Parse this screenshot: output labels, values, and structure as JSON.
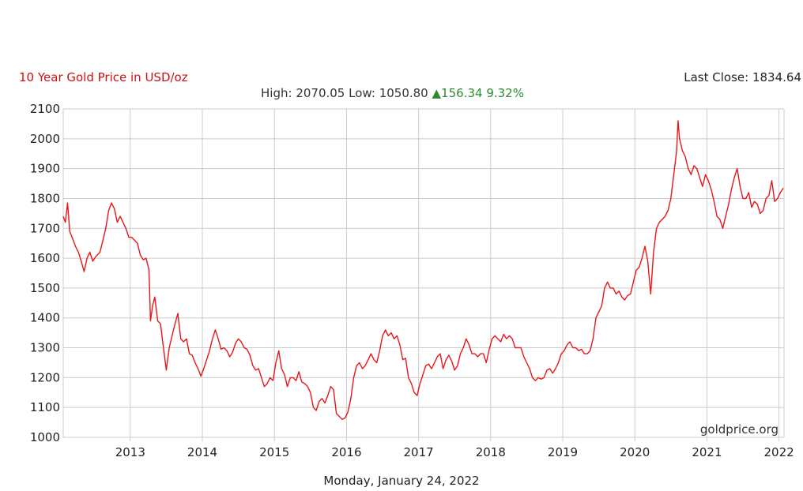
{
  "header": {
    "title": "10 Year Gold Price in USD/oz",
    "high_label": "High:",
    "high_value": "2070.05",
    "low_label": "Low:",
    "low_value": "1050.80",
    "change_arrow": "▲",
    "change_value": "156.34",
    "change_pct": "9.32%",
    "last_close_label": "Last Close:",
    "last_close_value": "1834.64"
  },
  "footer": {
    "source": "goldprice.org",
    "date": "Monday, January 24, 2022"
  },
  "colors": {
    "line": "#e8161b",
    "title": "#cc1111",
    "change": "#2e8b2e",
    "grid": "#cccccc"
  },
  "chart_data": {
    "type": "line",
    "title": "10 Year Gold Price in USD/oz",
    "xlabel": "",
    "ylabel": "",
    "ylim": [
      1000,
      2100
    ],
    "xlim": [
      2012.07,
      2022.07
    ],
    "yticks": [
      "1000",
      "1100",
      "1200",
      "1300",
      "1400",
      "1500",
      "1600",
      "1700",
      "1800",
      "1900",
      "2000",
      "2100"
    ],
    "xticks": [
      "2013",
      "2014",
      "2015",
      "2016",
      "2017",
      "2018",
      "2019",
      "2020",
      "2021",
      "2022"
    ],
    "grid": true,
    "series": [
      {
        "values": [
          [
            2012.07,
            1740
          ],
          [
            2012.1,
            1720
          ],
          [
            2012.13,
            1785
          ],
          [
            2012.16,
            1690
          ],
          [
            2012.2,
            1665
          ],
          [
            2012.24,
            1640
          ],
          [
            2012.28,
            1620
          ],
          [
            2012.32,
            1590
          ],
          [
            2012.36,
            1555
          ],
          [
            2012.4,
            1600
          ],
          [
            2012.44,
            1620
          ],
          [
            2012.48,
            1590
          ],
          [
            2012.52,
            1605
          ],
          [
            2012.58,
            1620
          ],
          [
            2012.62,
            1660
          ],
          [
            2012.66,
            1700
          ],
          [
            2012.7,
            1760
          ],
          [
            2012.74,
            1785
          ],
          [
            2012.78,
            1765
          ],
          [
            2012.82,
            1720
          ],
          [
            2012.86,
            1740
          ],
          [
            2012.9,
            1720
          ],
          [
            2012.94,
            1700
          ],
          [
            2012.98,
            1670
          ],
          [
            2013.02,
            1670
          ],
          [
            2013.06,
            1660
          ],
          [
            2013.1,
            1650
          ],
          [
            2013.14,
            1610
          ],
          [
            2013.18,
            1595
          ],
          [
            2013.22,
            1600
          ],
          [
            2013.26,
            1560
          ],
          [
            2013.28,
            1390
          ],
          [
            2013.31,
            1440
          ],
          [
            2013.34,
            1470
          ],
          [
            2013.38,
            1390
          ],
          [
            2013.42,
            1380
          ],
          [
            2013.46,
            1300
          ],
          [
            2013.5,
            1225
          ],
          [
            2013.54,
            1300
          ],
          [
            2013.58,
            1340
          ],
          [
            2013.62,
            1380
          ],
          [
            2013.66,
            1415
          ],
          [
            2013.7,
            1330
          ],
          [
            2013.74,
            1320
          ],
          [
            2013.78,
            1330
          ],
          [
            2013.82,
            1280
          ],
          [
            2013.86,
            1275
          ],
          [
            2013.9,
            1250
          ],
          [
            2013.94,
            1230
          ],
          [
            2013.98,
            1205
          ],
          [
            2014.02,
            1230
          ],
          [
            2014.06,
            1260
          ],
          [
            2014.1,
            1290
          ],
          [
            2014.14,
            1330
          ],
          [
            2014.18,
            1360
          ],
          [
            2014.22,
            1330
          ],
          [
            2014.26,
            1295
          ],
          [
            2014.3,
            1300
          ],
          [
            2014.34,
            1290
          ],
          [
            2014.38,
            1270
          ],
          [
            2014.42,
            1285
          ],
          [
            2014.46,
            1315
          ],
          [
            2014.5,
            1330
          ],
          [
            2014.54,
            1320
          ],
          [
            2014.58,
            1300
          ],
          [
            2014.62,
            1295
          ],
          [
            2014.66,
            1275
          ],
          [
            2014.7,
            1240
          ],
          [
            2014.74,
            1225
          ],
          [
            2014.78,
            1230
          ],
          [
            2014.82,
            1200
          ],
          [
            2014.86,
            1170
          ],
          [
            2014.9,
            1180
          ],
          [
            2014.94,
            1200
          ],
          [
            2014.98,
            1190
          ],
          [
            2015.02,
            1250
          ],
          [
            2015.06,
            1290
          ],
          [
            2015.1,
            1230
          ],
          [
            2015.14,
            1210
          ],
          [
            2015.18,
            1170
          ],
          [
            2015.22,
            1200
          ],
          [
            2015.26,
            1200
          ],
          [
            2015.3,
            1190
          ],
          [
            2015.34,
            1220
          ],
          [
            2015.38,
            1185
          ],
          [
            2015.42,
            1180
          ],
          [
            2015.46,
            1170
          ],
          [
            2015.5,
            1150
          ],
          [
            2015.54,
            1100
          ],
          [
            2015.58,
            1090
          ],
          [
            2015.62,
            1120
          ],
          [
            2015.66,
            1130
          ],
          [
            2015.7,
            1115
          ],
          [
            2015.74,
            1140
          ],
          [
            2015.78,
            1170
          ],
          [
            2015.82,
            1160
          ],
          [
            2015.86,
            1080
          ],
          [
            2015.9,
            1070
          ],
          [
            2015.94,
            1060
          ],
          [
            2015.98,
            1065
          ],
          [
            2016.02,
            1085
          ],
          [
            2016.06,
            1130
          ],
          [
            2016.1,
            1200
          ],
          [
            2016.14,
            1240
          ],
          [
            2016.18,
            1250
          ],
          [
            2016.22,
            1230
          ],
          [
            2016.26,
            1240
          ],
          [
            2016.3,
            1260
          ],
          [
            2016.34,
            1280
          ],
          [
            2016.38,
            1260
          ],
          [
            2016.42,
            1250
          ],
          [
            2016.46,
            1290
          ],
          [
            2016.5,
            1340
          ],
          [
            2016.54,
            1360
          ],
          [
            2016.58,
            1340
          ],
          [
            2016.62,
            1350
          ],
          [
            2016.66,
            1330
          ],
          [
            2016.7,
            1340
          ],
          [
            2016.74,
            1310
          ],
          [
            2016.78,
            1260
          ],
          [
            2016.82,
            1265
          ],
          [
            2016.86,
            1200
          ],
          [
            2016.9,
            1180
          ],
          [
            2016.94,
            1150
          ],
          [
            2016.98,
            1140
          ],
          [
            2017.02,
            1180
          ],
          [
            2017.06,
            1210
          ],
          [
            2017.1,
            1240
          ],
          [
            2017.14,
            1245
          ],
          [
            2017.18,
            1230
          ],
          [
            2017.22,
            1250
          ],
          [
            2017.26,
            1270
          ],
          [
            2017.3,
            1280
          ],
          [
            2017.34,
            1230
          ],
          [
            2017.38,
            1260
          ],
          [
            2017.42,
            1275
          ],
          [
            2017.46,
            1255
          ],
          [
            2017.5,
            1225
          ],
          [
            2017.54,
            1240
          ],
          [
            2017.58,
            1280
          ],
          [
            2017.62,
            1300
          ],
          [
            2017.66,
            1330
          ],
          [
            2017.7,
            1310
          ],
          [
            2017.74,
            1280
          ],
          [
            2017.78,
            1280
          ],
          [
            2017.82,
            1270
          ],
          [
            2017.86,
            1280
          ],
          [
            2017.9,
            1280
          ],
          [
            2017.94,
            1250
          ],
          [
            2017.98,
            1295
          ],
          [
            2018.02,
            1330
          ],
          [
            2018.06,
            1340
          ],
          [
            2018.1,
            1330
          ],
          [
            2018.14,
            1320
          ],
          [
            2018.18,
            1345
          ],
          [
            2018.22,
            1330
          ],
          [
            2018.26,
            1340
          ],
          [
            2018.3,
            1330
          ],
          [
            2018.34,
            1300
          ],
          [
            2018.38,
            1300
          ],
          [
            2018.42,
            1300
          ],
          [
            2018.46,
            1270
          ],
          [
            2018.5,
            1250
          ],
          [
            2018.54,
            1230
          ],
          [
            2018.58,
            1200
          ],
          [
            2018.62,
            1190
          ],
          [
            2018.66,
            1200
          ],
          [
            2018.7,
            1195
          ],
          [
            2018.74,
            1200
          ],
          [
            2018.78,
            1225
          ],
          [
            2018.82,
            1230
          ],
          [
            2018.86,
            1215
          ],
          [
            2018.9,
            1230
          ],
          [
            2018.94,
            1250
          ],
          [
            2018.98,
            1280
          ],
          [
            2019.02,
            1290
          ],
          [
            2019.06,
            1310
          ],
          [
            2019.1,
            1320
          ],
          [
            2019.14,
            1300
          ],
          [
            2019.18,
            1300
          ],
          [
            2019.22,
            1290
          ],
          [
            2019.26,
            1295
          ],
          [
            2019.3,
            1280
          ],
          [
            2019.34,
            1280
          ],
          [
            2019.38,
            1290
          ],
          [
            2019.42,
            1330
          ],
          [
            2019.46,
            1400
          ],
          [
            2019.5,
            1420
          ],
          [
            2019.54,
            1440
          ],
          [
            2019.58,
            1500
          ],
          [
            2019.62,
            1520
          ],
          [
            2019.66,
            1500
          ],
          [
            2019.7,
            1500
          ],
          [
            2019.74,
            1480
          ],
          [
            2019.78,
            1490
          ],
          [
            2019.82,
            1470
          ],
          [
            2019.86,
            1460
          ],
          [
            2019.9,
            1475
          ],
          [
            2019.94,
            1480
          ],
          [
            2019.98,
            1520
          ],
          [
            2020.02,
            1560
          ],
          [
            2020.06,
            1570
          ],
          [
            2020.1,
            1600
          ],
          [
            2020.14,
            1640
          ],
          [
            2020.18,
            1590
          ],
          [
            2020.22,
            1480
          ],
          [
            2020.26,
            1620
          ],
          [
            2020.3,
            1700
          ],
          [
            2020.34,
            1720
          ],
          [
            2020.38,
            1730
          ],
          [
            2020.42,
            1740
          ],
          [
            2020.46,
            1760
          ],
          [
            2020.5,
            1800
          ],
          [
            2020.54,
            1880
          ],
          [
            2020.58,
            1960
          ],
          [
            2020.6,
            2060
          ],
          [
            2020.62,
            2000
          ],
          [
            2020.66,
            1960
          ],
          [
            2020.7,
            1940
          ],
          [
            2020.74,
            1900
          ],
          [
            2020.78,
            1880
          ],
          [
            2020.82,
            1910
          ],
          [
            2020.86,
            1900
          ],
          [
            2020.9,
            1870
          ],
          [
            2020.94,
            1840
          ],
          [
            2020.98,
            1880
          ],
          [
            2021.02,
            1860
          ],
          [
            2021.06,
            1830
          ],
          [
            2021.1,
            1790
          ],
          [
            2021.14,
            1740
          ],
          [
            2021.18,
            1730
          ],
          [
            2021.22,
            1700
          ],
          [
            2021.26,
            1740
          ],
          [
            2021.3,
            1780
          ],
          [
            2021.34,
            1830
          ],
          [
            2021.38,
            1870
          ],
          [
            2021.42,
            1900
          ],
          [
            2021.46,
            1840
          ],
          [
            2021.5,
            1800
          ],
          [
            2021.54,
            1800
          ],
          [
            2021.58,
            1820
          ],
          [
            2021.62,
            1770
          ],
          [
            2021.66,
            1790
          ],
          [
            2021.7,
            1780
          ],
          [
            2021.74,
            1750
          ],
          [
            2021.78,
            1760
          ],
          [
            2021.82,
            1800
          ],
          [
            2021.86,
            1810
          ],
          [
            2021.9,
            1860
          ],
          [
            2021.94,
            1790
          ],
          [
            2021.98,
            1800
          ],
          [
            2022.02,
            1820
          ],
          [
            2022.06,
            1835
          ]
        ]
      }
    ]
  }
}
